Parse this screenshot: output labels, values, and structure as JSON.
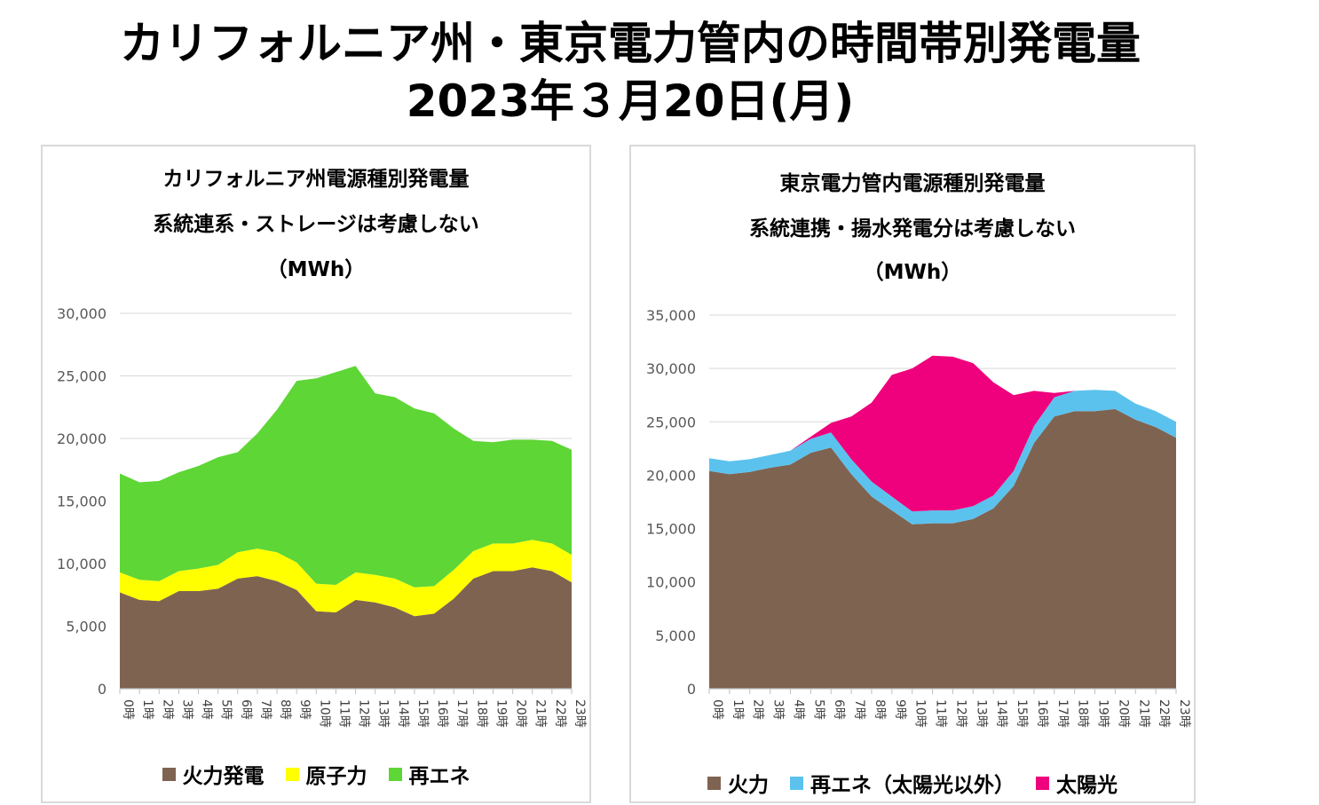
{
  "header": {
    "title_line1": "カリフォルニア州・東京電力管内の時間帯別発電量",
    "title_line2": "2023年３月20日(月)"
  },
  "chart_data": [
    {
      "type": "area",
      "stacked": true,
      "title_lines": [
        "カリフォルニア州電源種別発電量",
        "系統連系・ストレージは考慮しない",
        "（MWh）"
      ],
      "categories": [
        "0時",
        "1時",
        "2時",
        "3時",
        "4時",
        "5時",
        "6時",
        "7時",
        "8時",
        "9時",
        "10時",
        "11時",
        "12時",
        "13時",
        "14時",
        "15時",
        "16時",
        "17時",
        "18時",
        "19時",
        "20時",
        "21時",
        "22時",
        "23時"
      ],
      "ylim": [
        0,
        30000
      ],
      "yticks": [
        0,
        5000,
        10000,
        15000,
        20000,
        25000,
        30000
      ],
      "ytick_labels": [
        "0",
        "5,000",
        "10,000",
        "15,000",
        "20,000",
        "25,000",
        "30,000"
      ],
      "grid": true,
      "legend_position": "bottom",
      "series": [
        {
          "name": "火力発電",
          "color": "#7f6351",
          "values": [
            7700,
            7100,
            7000,
            7800,
            7800,
            8000,
            8800,
            9000,
            8600,
            7900,
            6200,
            6100,
            7100,
            6900,
            6500,
            5800,
            6000,
            7200,
            8800,
            9400,
            9400,
            9700,
            9400,
            8500
          ]
        },
        {
          "name": "原子力",
          "color": "#ffff00",
          "values": [
            1600,
            1600,
            1600,
            1600,
            1800,
            1900,
            2100,
            2200,
            2300,
            2200,
            2200,
            2200,
            2200,
            2200,
            2300,
            2300,
            2200,
            2300,
            2200,
            2200,
            2200,
            2200,
            2200,
            2200
          ]
        },
        {
          "name": "再エネ",
          "color": "#5ed636",
          "values": [
            7900,
            7800,
            8000,
            7900,
            8200,
            8600,
            8000,
            9200,
            11400,
            14500,
            16400,
            17000,
            16500,
            14500,
            14500,
            14300,
            13800,
            11300,
            8800,
            8100,
            8300,
            8000,
            8200,
            8400
          ]
        }
      ]
    },
    {
      "type": "area",
      "stacked": true,
      "title_lines": [
        "東京電力管内電源種別発電量",
        "系統連携・揚水発電分は考慮しない",
        "（MWh）"
      ],
      "categories": [
        "0時",
        "1時",
        "2時",
        "3時",
        "4時",
        "5時",
        "6時",
        "7時",
        "8時",
        "9時",
        "10時",
        "11時",
        "12時",
        "13時",
        "14時",
        "15時",
        "16時",
        "17時",
        "18時",
        "19時",
        "20時",
        "21時",
        "22時",
        "23時"
      ],
      "ylim": [
        0,
        35000
      ],
      "yticks": [
        0,
        5000,
        10000,
        15000,
        20000,
        25000,
        30000,
        35000
      ],
      "ytick_labels": [
        "0",
        "5,000",
        "10,000",
        "15,000",
        "20,000",
        "25,000",
        "30,000",
        "35,000"
      ],
      "grid": true,
      "legend_position": "bottom",
      "series": [
        {
          "name": "火力",
          "color": "#7f6351",
          "values": [
            20400,
            20100,
            20300,
            20700,
            21000,
            22100,
            22600,
            20100,
            18000,
            16700,
            15400,
            15500,
            15500,
            15900,
            16900,
            19000,
            23000,
            25500,
            26000,
            26000,
            26200,
            25200,
            24500,
            23500
          ]
        },
        {
          "name": "再エネ（太陽光以外）",
          "color": "#5bc2ee",
          "values": [
            1200,
            1200,
            1200,
            1200,
            1300,
            1300,
            1400,
            1400,
            1400,
            1300,
            1200,
            1200,
            1200,
            1200,
            1200,
            1400,
            1600,
            1800,
            1900,
            2000,
            1700,
            1500,
            1500,
            1500
          ]
        },
        {
          "name": "太陽光",
          "color": "#ef007c",
          "values": [
            0,
            0,
            0,
            0,
            0,
            200,
            900,
            4000,
            7400,
            11400,
            13400,
            14500,
            14400,
            13400,
            10600,
            7100,
            3300,
            400,
            0,
            0,
            0,
            0,
            0,
            0
          ]
        }
      ]
    }
  ]
}
